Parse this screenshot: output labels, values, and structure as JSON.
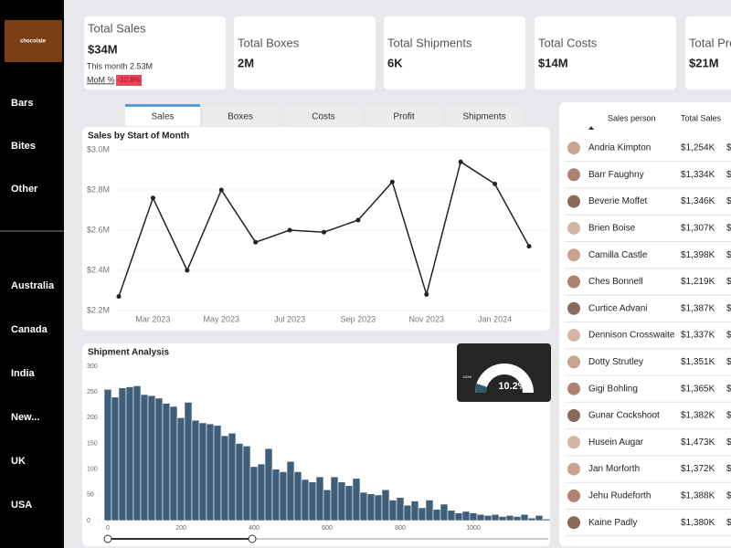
{
  "sidebar": {
    "logo": "chocolate",
    "products": [
      "Bars",
      "Bites",
      "Other"
    ],
    "countries": [
      "Australia",
      "Canada",
      "India",
      "New...",
      "UK",
      "USA"
    ]
  },
  "kpis": [
    {
      "title": "Total Sales",
      "value": "$34M",
      "note": "This month 2.53M",
      "mom_label": "MoM %",
      "mom_value": "-10.8%"
    },
    {
      "title": "Total Boxes",
      "value": "2M"
    },
    {
      "title": "Total Shipments",
      "value": "6K"
    },
    {
      "title": "Total Costs",
      "value": "$14M"
    },
    {
      "title": "Total Pro",
      "value": "$21M"
    }
  ],
  "tabs": [
    "Sales",
    "Boxes",
    "Costs",
    "Profit",
    "Shipments"
  ],
  "line_chart": {
    "type": "line",
    "title": "Sales by Start of Month",
    "color": "#222222",
    "categories": [
      null,
      "Mar 2023",
      null,
      "May 2023",
      null,
      "Jul 2023",
      null,
      "Sep 2023",
      null,
      "Nov 2023",
      null,
      "Jan 2024",
      null
    ],
    "values": [
      2270000,
      2760000,
      2400000,
      2800000,
      2540000,
      2600000,
      2590000,
      2650000,
      2840000,
      2280000,
      2940000,
      2830000,
      2520000
    ],
    "ylim": [
      2200000,
      3000000
    ],
    "yticks": [
      {
        "value": 2200000,
        "label": "$2.2M"
      },
      {
        "value": 2400000,
        "label": "$2.4M"
      },
      {
        "value": 2600000,
        "label": "$2.6M"
      },
      {
        "value": 2800000,
        "label": "$2.8M"
      },
      {
        "value": 3000000,
        "label": "$3.0M"
      }
    ],
    "grid": true
  },
  "histogram": {
    "type": "histogram",
    "title": "Shipment Analysis",
    "color": "#3f5f7a",
    "bins": [
      -10,
      10,
      30,
      50,
      70,
      90,
      110,
      130,
      150,
      170,
      190,
      210,
      230,
      250,
      270,
      290,
      310,
      330,
      350,
      370,
      390,
      410,
      430,
      450,
      470,
      490,
      510,
      530,
      550,
      570,
      590,
      610,
      630,
      650,
      670,
      690,
      710,
      730,
      750,
      770,
      790,
      810,
      830,
      850,
      870,
      890,
      910,
      930,
      950,
      970,
      990,
      1010,
      1030,
      1050,
      1070,
      1090,
      1110,
      1130,
      1150,
      1170,
      1190,
      1210
    ],
    "values": [
      255,
      240,
      258,
      260,
      262,
      245,
      243,
      238,
      228,
      222,
      200,
      230,
      195,
      190,
      188,
      185,
      165,
      170,
      150,
      145,
      105,
      110,
      140,
      100,
      95,
      115,
      95,
      80,
      75,
      85,
      60,
      85,
      75,
      68,
      82,
      55,
      52,
      50,
      60,
      40,
      45,
      30,
      38,
      25,
      40,
      22,
      32,
      20,
      15,
      18,
      15,
      12,
      10,
      12,
      8,
      10,
      8,
      12,
      5,
      10,
      3
    ],
    "xlim": [
      -25,
      1200
    ],
    "xticks": [
      0,
      200,
      400,
      600,
      800,
      1000
    ],
    "ylim": [
      0,
      300
    ],
    "yticks": [
      0,
      50,
      100,
      150,
      200,
      250,
      300
    ]
  },
  "gauge": {
    "value": 10.2,
    "value_label": "10.2%",
    "max": {
      "value": 100,
      "label": "100%"
    }
  },
  "table": {
    "columns": [
      "Sales person",
      "Total Sales"
    ],
    "rows": [
      [
        "Andria Kimpton",
        "$1,254K",
        "$"
      ],
      [
        "Barr Faughny",
        "$1,334K",
        "$"
      ],
      [
        "Beverie Moffet",
        "$1,346K",
        "$"
      ],
      [
        "Brien Boise",
        "$1,307K",
        "$"
      ],
      [
        "Camilla Castle",
        "$1,398K",
        "$"
      ],
      [
        "Ches Bonnell",
        "$1,219K",
        "$"
      ],
      [
        "Curtice Advani",
        "$1,387K",
        "$"
      ],
      [
        "Dennison Crosswaite",
        "$1,337K",
        "$"
      ],
      [
        "Dotty Strutley",
        "$1,351K",
        "$"
      ],
      [
        "Gigi Bohling",
        "$1,365K",
        "$"
      ],
      [
        "Gunar Cockshoot",
        "$1,382K",
        "$"
      ],
      [
        "Husein Augar",
        "$1,473K",
        "$"
      ],
      [
        "Jan Morforth",
        "$1,372K",
        "$"
      ],
      [
        "Jehu Rudeforth",
        "$1,388K",
        "$"
      ],
      [
        "Kaine Padly",
        "$1,380K",
        "$"
      ]
    ]
  }
}
